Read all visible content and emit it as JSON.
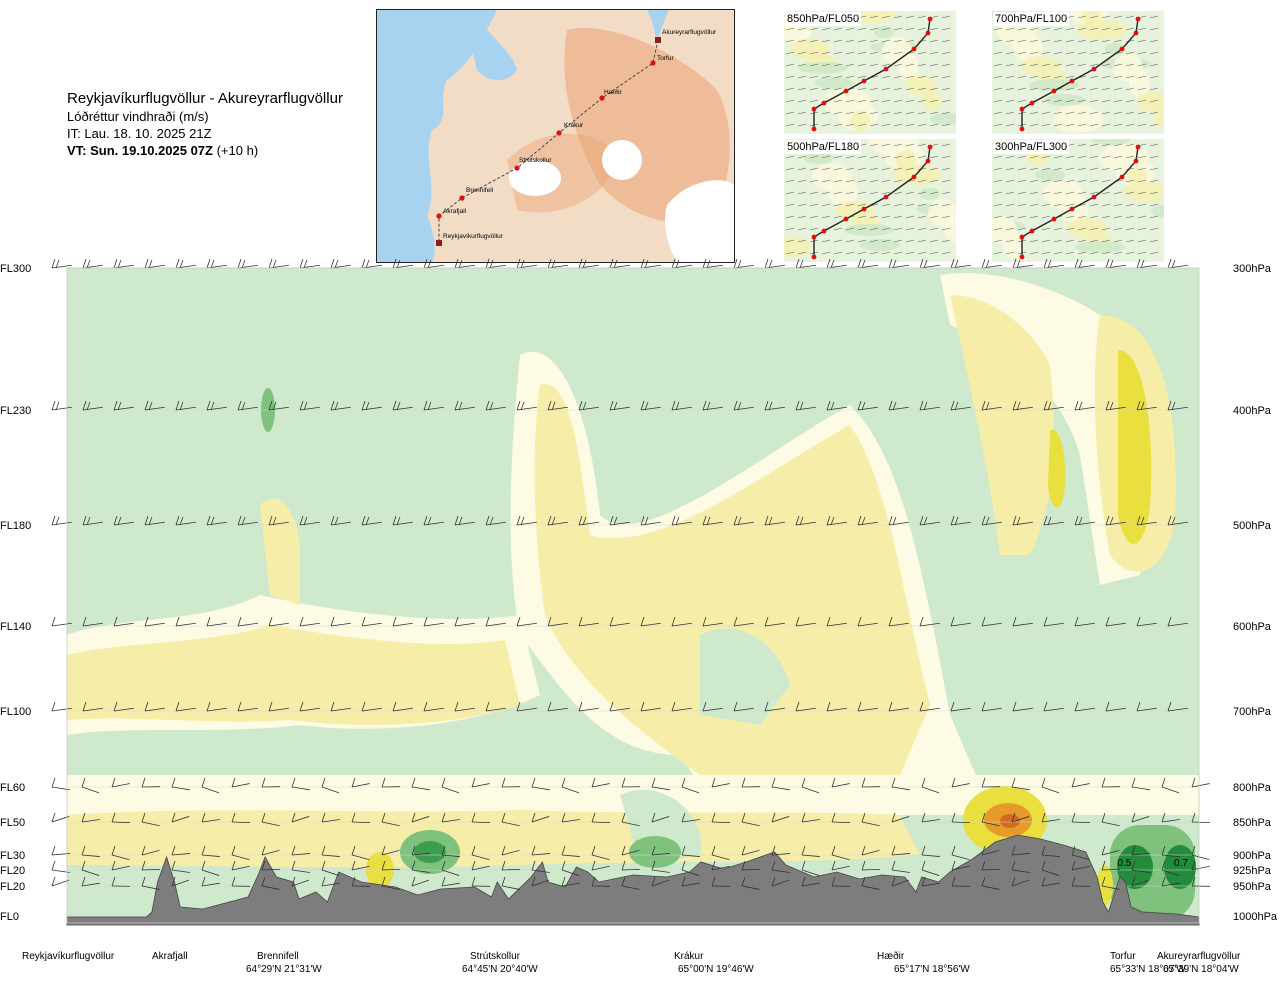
{
  "header": {
    "title": "Reykjavíkurflugvöllur - Akureyrarflugvöllur",
    "subtitle": "Lóðréttur vindhraði (m/s)",
    "issue_time": "IT: Lau. 18. 10. 2025 21Z",
    "valid_time_bold": "VT: Sun. 19.10.2025 07Z",
    "valid_time_offset": "(+10 h)"
  },
  "route_map": {
    "waypoints": [
      {
        "name": "Akureyrarflugvöllur",
        "kind": "airport"
      },
      {
        "name": "Torfur",
        "kind": "point"
      },
      {
        "name": "Hæðir",
        "kind": "point"
      },
      {
        "name": "Krákur",
        "kind": "point"
      },
      {
        "name": "Strútskollur",
        "kind": "point"
      },
      {
        "name": "Brennifell",
        "kind": "point"
      },
      {
        "name": "Akrafjall",
        "kind": "point"
      },
      {
        "name": "Reykjavíkurflugvöllur",
        "kind": "airport"
      }
    ],
    "colors": {
      "sea": "#a8d3f0",
      "land": "#f3dcc6",
      "high": "#eaa374",
      "ice": "#ffffff",
      "route": "#444444",
      "point": "#e01010",
      "airport": "#8b1e1e"
    }
  },
  "level_maps": [
    {
      "label": "850hPa/FL050"
    },
    {
      "label": "700hPa/FL100"
    },
    {
      "label": "500hPa/FL180"
    },
    {
      "label": "300hPa/FL300"
    }
  ],
  "chart_data": {
    "type": "heatmap",
    "title": "Reykjavíkurflugvöllur - Akureyrarflugvöllur",
    "quantity": "Lóðréttur vindhraði (m/s)",
    "levels": [
      {
        "fl": "FL300",
        "hpa": "300hPa",
        "pressure": 300
      },
      {
        "fl": "FL230",
        "hpa": "400hPa",
        "pressure": 400
      },
      {
        "fl": "FL180",
        "hpa": "500hPa",
        "pressure": 500
      },
      {
        "fl": "FL140",
        "hpa": "600hPa",
        "pressure": 600
      },
      {
        "fl": "FL100",
        "hpa": "700hPa",
        "pressure": 700
      },
      {
        "fl": "FL60",
        "hpa": "800hPa",
        "pressure": 800
      },
      {
        "fl": "FL50",
        "hpa": "850hPa",
        "pressure": 850
      },
      {
        "fl": "FL30",
        "hpa": "900hPa",
        "pressure": 900
      },
      {
        "fl": "FL20",
        "hpa": "925hPa",
        "pressure": 925
      },
      {
        "fl": "FL20",
        "hpa": "950hPa",
        "pressure": 950
      },
      {
        "fl": "FL0",
        "hpa": "1000hPa",
        "pressure": 1000
      }
    ],
    "waypoints": [
      {
        "name": "Reykjavíkurflugvöllur",
        "coord": "",
        "pos": 0.0
      },
      {
        "name": "Akrafjall",
        "coord": "",
        "pos": 0.085
      },
      {
        "name": "Brennifell",
        "coord": "64°29'N 21°31'W",
        "pos": 0.19
      },
      {
        "name": "Strútskollur",
        "coord": "64°45'N 20°40'W",
        "pos": 0.385
      },
      {
        "name": "Krákur",
        "coord": "65°00'N 19°46'W",
        "pos": 0.565
      },
      {
        "name": "Hæðir",
        "coord": "65°17'N 18°56'W",
        "pos": 0.74
      },
      {
        "name": "Torfur",
        "coord": "65°33'N 18°07'W",
        "pos": 0.93
      },
      {
        "name": "Akureyrarflugvöllur",
        "coord": "65°39'N 18°04'W",
        "pos": 0.985
      }
    ],
    "contour_labels": [
      {
        "text": "0.5",
        "pos": 0.935,
        "pressure": 912
      },
      {
        "text": "0.7",
        "pos": 0.985,
        "pressure": 912
      }
    ],
    "contour_colors": {
      "strong_down": "#228b3c",
      "mod_down": "#7ec27e",
      "weak_down": "#cfe9cc",
      "neutral": "#fdfbe4",
      "weak_up": "#f6eda8",
      "mod_up": "#e9df3e",
      "strong_up": "#e79a2a",
      "terrain": "#7d7d7d"
    }
  }
}
